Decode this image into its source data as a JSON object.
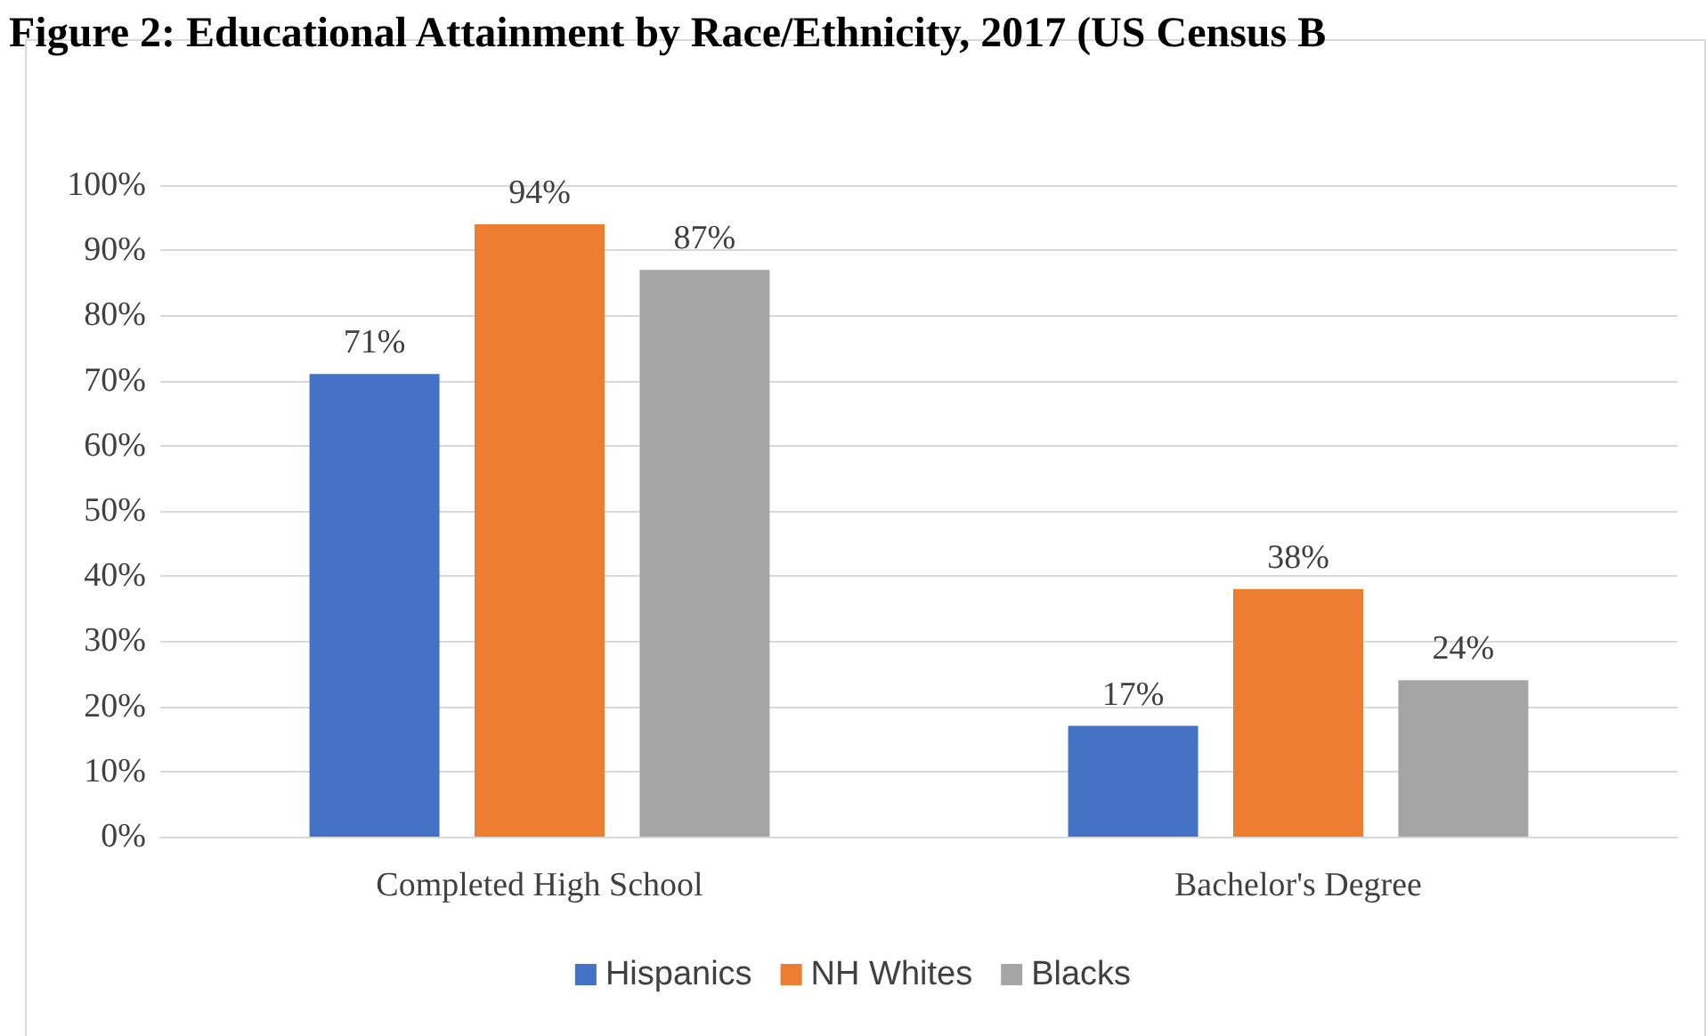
{
  "chart_data": {
    "type": "bar",
    "title": "Figure 2: Educational Attainment by Race/Ethnicity, 2017 (US Census B",
    "categories": [
      "Completed High School",
      "Bachelor's Degree"
    ],
    "series": [
      {
        "name": "Hispanics",
        "color": "#4472c4",
        "values": [
          71,
          17
        ]
      },
      {
        "name": "NH Whites",
        "color": "#ed7d31",
        "values": [
          94,
          38
        ]
      },
      {
        "name": "Blacks",
        "color": "#a5a5a5",
        "values": [
          87,
          24
        ]
      }
    ],
    "ylim": [
      0,
      100
    ],
    "yticks": [
      {
        "value": 0,
        "label": "0%"
      },
      {
        "value": 10,
        "label": "10%"
      },
      {
        "value": 20,
        "label": "20%"
      },
      {
        "value": 30,
        "label": "30%"
      },
      {
        "value": 40,
        "label": "40%"
      },
      {
        "value": 50,
        "label": "50%"
      },
      {
        "value": 60,
        "label": "60%"
      },
      {
        "value": 70,
        "label": "70%"
      },
      {
        "value": 80,
        "label": "80%"
      },
      {
        "value": 90,
        "label": "90%"
      },
      {
        "value": 100,
        "label": "100%"
      }
    ],
    "value_labels": [
      [
        "71%",
        "17%"
      ],
      [
        "94%",
        "38%"
      ],
      [
        "87%",
        "24%"
      ]
    ],
    "grid": "y",
    "legend": "bottom"
  }
}
